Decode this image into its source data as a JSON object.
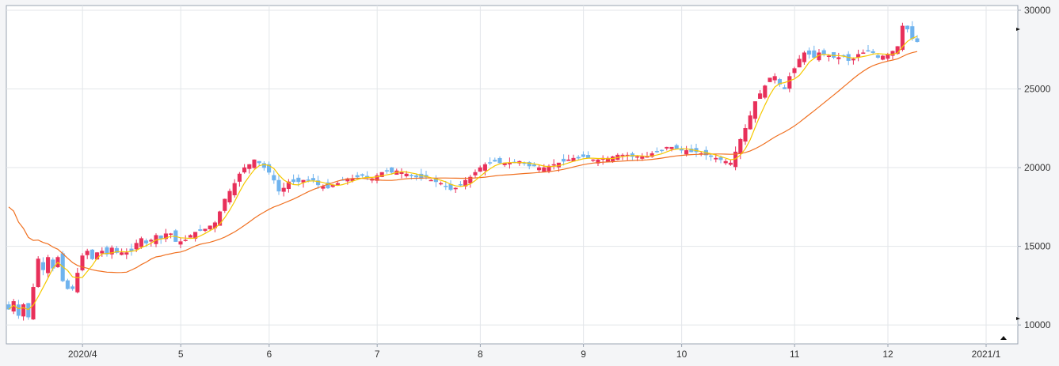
{
  "chart_data": {
    "type": "candlestick",
    "title": "",
    "x_tick_labels": [
      "2020/4",
      "5",
      "6",
      "7",
      "8",
      "9",
      "10",
      "11",
      "12",
      "2021/1"
    ],
    "x_tick_index": [
      16,
      36,
      54,
      76,
      97,
      118,
      138,
      161,
      180,
      200
    ],
    "y_tick_labels": [
      "30000",
      "25000",
      "20000",
      "15000",
      "10000"
    ],
    "y_tick_values": [
      30000,
      25000,
      20000,
      15000,
      10000
    ],
    "ylim": [
      8800,
      30300
    ],
    "grid": true,
    "colors": {
      "up": "#e8305a",
      "down": "#6fb3ee",
      "ma_short": "#f5c800",
      "ma_long": "#f07020",
      "grid": "#e3e6ea",
      "frame": "#9aa4b2"
    },
    "close": [
      11000,
      11500,
      10600,
      11300,
      10500,
      12400,
      14200,
      13500,
      14300,
      13600,
      14300,
      12800,
      12300,
      12300,
      13300,
      14400,
      14700,
      14200,
      14600,
      14700,
      14500,
      14900,
      14600,
      14600,
      14600,
      14700,
      15200,
      15500,
      15200,
      15400,
      15700,
      15500,
      15800,
      15800,
      15300,
      15300,
      15400,
      15700,
      15900,
      16000,
      16100,
      16300,
      16500,
      17200,
      18000,
      18500,
      19000,
      19600,
      20000,
      20200,
      20500,
      20300,
      20000,
      19700,
      19200,
      18500,
      18700,
      19100,
      19100,
      19100,
      19200,
      19200,
      19200,
      18900,
      18800,
      18700,
      18900,
      19000,
      19200,
      19300,
      19300,
      19400,
      19500,
      19400,
      19300,
      19500,
      19700,
      19800,
      19700,
      19800,
      19700,
      19600,
      19500,
      19400,
      19300,
      19400,
      19200,
      19100,
      19000,
      18800,
      18600,
      18700,
      18900,
      19200,
      19400,
      19700,
      20000,
      20200,
      20300,
      20400,
      20300,
      20300,
      20300,
      20300,
      20400,
      20300,
      20100,
      20100,
      20000,
      20000,
      20100,
      20200,
      20300,
      20400,
      20500,
      20600,
      20600,
      20700,
      20600,
      20500,
      20500,
      20600,
      20600,
      20700,
      20800,
      20800,
      20800,
      20700,
      20700,
      20700,
      20700,
      20900,
      21000,
      21100,
      21300,
      21300,
      21200,
      21100,
      21100,
      21000,
      21000,
      20900,
      20800,
      20700,
      20600,
      20500,
      20400,
      20300,
      21000,
      21800,
      22500,
      23300,
      24200,
      24700,
      25200,
      25700,
      25800,
      25300,
      25000,
      25800,
      26300,
      26900,
      27300,
      27200,
      27000,
      27300,
      27200,
      27100,
      27000,
      27000,
      27100,
      26800,
      26900,
      27200,
      27300,
      27400,
      27300,
      27000,
      27100,
      27200,
      27400,
      27700,
      29000,
      28800,
      28200,
      28000
    ]
  }
}
